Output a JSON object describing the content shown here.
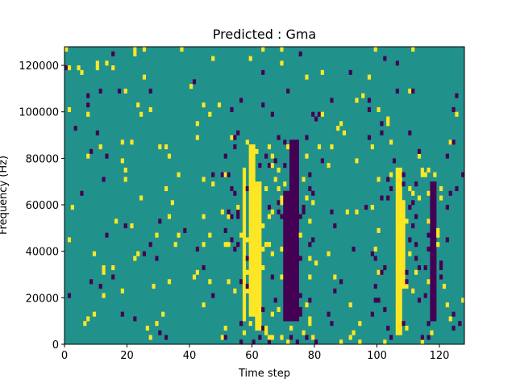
{
  "chart_data": {
    "type": "heatmap",
    "title": "Predicted : Gma",
    "xlabel": "Time step",
    "ylabel": "Frequency (Hz)",
    "xlim": [
      0,
      128
    ],
    "ylim": [
      0,
      128000
    ],
    "x_ticks": [
      0,
      20,
      40,
      60,
      80,
      100,
      120
    ],
    "y_ticks": [
      0,
      20000,
      40000,
      60000,
      80000,
      100000,
      120000
    ],
    "colormap": "viridis",
    "colors": {
      "low": "#440154",
      "mid": "#21918c",
      "high": "#fde725"
    },
    "background_value": "mid",
    "grid_shape": {
      "time_steps": 128,
      "frequency_bins": 64,
      "bin_hz": 2000
    },
    "high_bands": [
      {
        "t": [
          59,
          61
        ],
        "f": [
          12000,
          86000
        ]
      },
      {
        "t": [
          61,
          63
        ],
        "f": [
          6000,
          70000
        ]
      },
      {
        "t": [
          57,
          58
        ],
        "f": [
          10000,
          76000
        ]
      },
      {
        "t": [
          106,
          108
        ],
        "f": [
          4000,
          76000
        ]
      },
      {
        "t": [
          108,
          109
        ],
        "f": [
          24000,
          62000
        ]
      }
    ],
    "low_bands": [
      {
        "t": [
          72,
          75
        ],
        "f": [
          10000,
          88000
        ]
      },
      {
        "t": [
          70,
          72
        ],
        "f": [
          10000,
          66000
        ]
      },
      {
        "t": [
          117,
          119
        ],
        "f": [
          10000,
          70000
        ]
      }
    ]
  }
}
